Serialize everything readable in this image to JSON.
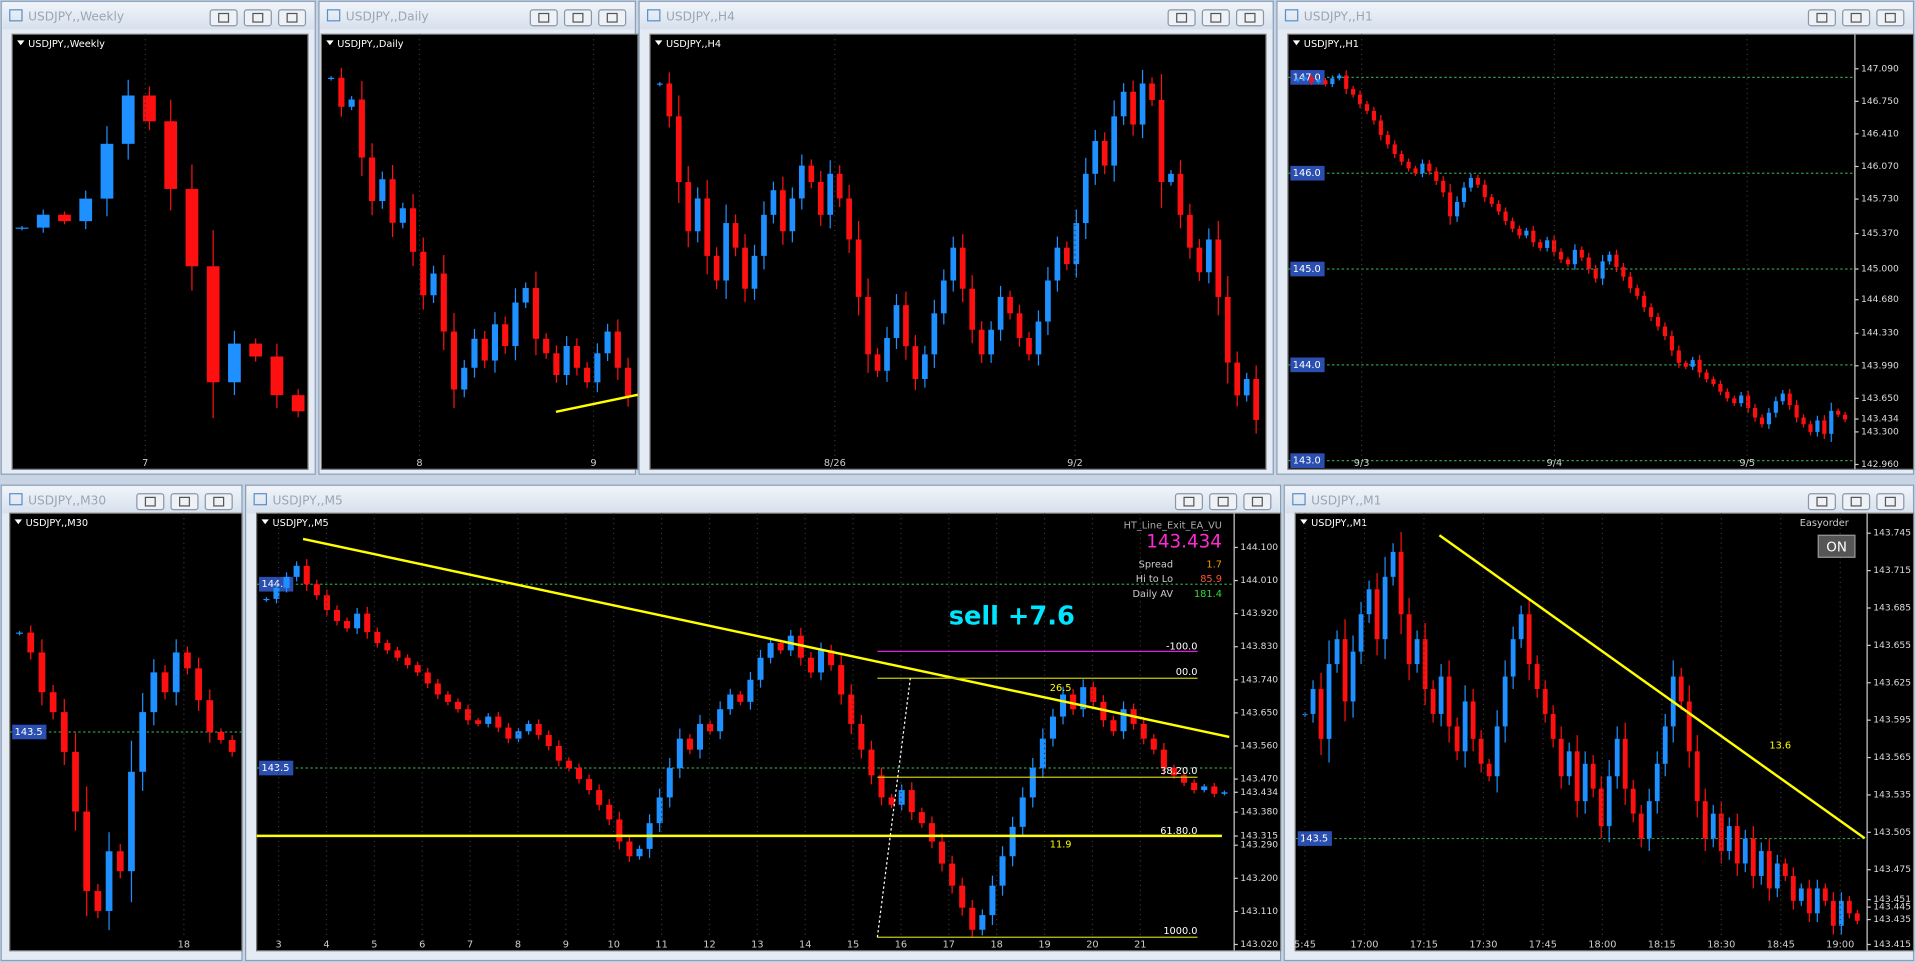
{
  "windows": [
    {
      "title": "USDJPY,,Weekly",
      "ylim": [
        138.5,
        152
      ],
      "xticks": [
        "7"
      ],
      "closes": [
        146.0,
        146.4,
        146.2,
        146.9,
        148.6,
        150.1,
        149.3,
        147.2,
        144.8,
        141.2,
        142.4,
        142.0,
        140.8,
        140.3
      ]
    },
    {
      "title": "USDJPY,,Daily",
      "ylim": [
        142.5,
        148.5
      ],
      "xticks": [
        "8",
        "9"
      ],
      "closes": [
        147.9,
        147.5,
        147.6,
        146.8,
        146.2,
        146.5,
        145.9,
        146.1,
        145.5,
        144.9,
        145.2,
        144.4,
        143.6,
        143.9,
        144.3,
        144.0,
        144.5,
        144.2,
        144.8,
        145.0,
        144.3,
        144.1,
        143.8,
        144.2,
        143.9,
        143.7,
        144.1,
        144.4,
        143.9,
        143.5
      ]
    },
    {
      "title": "USDJPY,,H4",
      "ylim": [
        142.3,
        147.6
      ],
      "xticks": [
        "8/26",
        "9/2"
      ],
      "closes": [
        147.0,
        146.6,
        145.8,
        145.2,
        145.6,
        144.9,
        144.6,
        145.3,
        145.0,
        144.5,
        144.9,
        145.4,
        145.7,
        145.2,
        145.6,
        146.0,
        145.8,
        145.4,
        145.9,
        145.6,
        145.1,
        144.4,
        143.7,
        143.5,
        143.9,
        144.3,
        143.8,
        143.4,
        143.7,
        144.2,
        144.6,
        145.0,
        144.5,
        144.0,
        143.7,
        144.0,
        144.4,
        144.2,
        143.9,
        143.7,
        144.1,
        144.6,
        145.0,
        144.8,
        145.3,
        145.9,
        146.3,
        146.0,
        146.6,
        146.9,
        146.5,
        147.0,
        146.8,
        145.8,
        145.9,
        145.4,
        145.0,
        144.7,
        145.1,
        144.4,
        143.6,
        143.2,
        143.4,
        142.9
      ]
    },
    {
      "title": "USDJPY,,H1",
      "ylim": [
        142.91,
        147.45
      ],
      "xticks": [
        "9/3",
        "9/4",
        "9/5"
      ],
      "yticks": [
        {
          "value": 147.09,
          "label": "147.090"
        },
        {
          "value": 146.75,
          "label": "146.750"
        },
        {
          "value": 146.41,
          "label": "146.410"
        },
        {
          "value": 146.07,
          "label": "146.070"
        },
        {
          "value": 145.73,
          "label": "145.730"
        },
        {
          "value": 145.37,
          "label": "145.370"
        },
        {
          "value": 145.0,
          "label": "145.000"
        },
        {
          "value": 144.68,
          "label": "144.680"
        },
        {
          "value": 144.33,
          "label": "144.330"
        },
        {
          "value": 143.99,
          "label": "143.990"
        },
        {
          "value": 143.65,
          "label": "143.650"
        },
        143.434,
        {
          "value": 143.3,
          "label": "143.300"
        },
        {
          "value": 142.96,
          "label": "142.960"
        }
      ],
      "levels": [
        {
          "value": 147,
          "label": "147.0"
        },
        {
          "value": 146,
          "label": "146.0"
        },
        {
          "value": 145,
          "label": "145.0"
        },
        {
          "value": 144,
          "label": "144.0"
        },
        {
          "value": 143,
          "label": "143.0"
        }
      ],
      "closes": [
        146.98,
        147.0,
        146.95,
        146.97,
        146.93,
        146.99,
        147.02,
        146.88,
        146.82,
        146.72,
        146.65,
        146.55,
        146.4,
        146.3,
        146.2,
        146.12,
        146.05,
        146.0,
        146.1,
        146.02,
        145.92,
        145.8,
        145.55,
        145.7,
        145.85,
        145.95,
        145.88,
        145.75,
        145.68,
        145.6,
        145.5,
        145.42,
        145.35,
        145.4,
        145.28,
        145.22,
        145.3,
        145.18,
        145.1,
        145.05,
        145.2,
        145.12,
        145.0,
        144.9,
        145.08,
        145.15,
        145.02,
        144.92,
        144.8,
        144.72,
        144.6,
        144.5,
        144.4,
        144.3,
        144.15,
        144.02,
        143.98,
        144.05,
        143.92,
        143.85,
        143.8,
        143.72,
        143.65,
        143.6,
        143.68,
        143.55,
        143.45,
        143.38,
        143.5,
        143.62,
        143.7,
        143.58,
        143.45,
        143.38,
        143.3,
        143.42,
        143.28,
        143.52,
        143.48,
        143.43
      ]
    },
    {
      "title": "USDJPY,,M30",
      "ylim": [
        142.95,
        144.05
      ],
      "xticks": [
        "18"
      ],
      "levels": [
        {
          "value": 143.5,
          "label": "143.5"
        }
      ],
      "closes": [
        143.75,
        143.7,
        143.6,
        143.55,
        143.45,
        143.3,
        143.1,
        143.05,
        143.2,
        143.15,
        143.4,
        143.55,
        143.65,
        143.6,
        143.7,
        143.66,
        143.58,
        143.5,
        143.48,
        143.45
      ]
    },
    {
      "title": "USDJPY,,M5",
      "ylim": [
        143.003,
        144.193
      ],
      "xticks": [
        "3",
        "4",
        "5",
        "6",
        "7",
        "8",
        "9",
        "10",
        "11",
        "12",
        "13",
        "14",
        "15",
        "16",
        "17",
        "18",
        "19",
        "20",
        "21"
      ],
      "yticks": [
        {
          "value": 144.1,
          "label": "144.100"
        },
        {
          "value": 144.01,
          "label": "144.010"
        },
        {
          "value": 143.92,
          "label": "143.920"
        },
        {
          "value": 143.83,
          "label": "143.830"
        },
        {
          "value": 143.74,
          "label": "143.740"
        },
        {
          "value": 143.65,
          "label": "143.650"
        },
        {
          "value": 143.56,
          "label": "143.560"
        },
        {
          "value": 143.47,
          "label": "143.470"
        },
        143.434,
        {
          "value": 143.38,
          "label": "143.380"
        },
        143.315,
        {
          "value": 143.29,
          "label": "143.290"
        },
        {
          "value": 143.2,
          "label": "143.200"
        },
        {
          "value": 143.11,
          "label": "143.110"
        },
        {
          "value": 143.02,
          "label": "143.020"
        }
      ],
      "levels": [
        {
          "value": 144,
          "label": "144.0"
        },
        {
          "value": 143.5,
          "label": "143.5"
        }
      ],
      "closes": [
        143.96,
        143.99,
        144.02,
        144.05,
        144.0,
        143.97,
        143.93,
        143.9,
        143.88,
        143.92,
        143.87,
        143.84,
        143.82,
        143.8,
        143.78,
        143.76,
        143.73,
        143.7,
        143.68,
        143.66,
        143.63,
        143.62,
        143.64,
        143.61,
        143.58,
        143.6,
        143.62,
        143.59,
        143.56,
        143.52,
        143.5,
        143.47,
        143.44,
        143.4,
        143.36,
        143.3,
        143.26,
        143.28,
        143.35,
        143.42,
        143.5,
        143.58,
        143.55,
        143.62,
        143.6,
        143.66,
        143.7,
        143.68,
        143.74,
        143.8,
        143.84,
        143.82,
        143.86,
        143.8,
        143.76,
        143.82,
        143.78,
        143.7,
        143.62,
        143.55,
        143.48,
        143.42,
        143.4,
        143.44,
        143.38,
        143.35,
        143.3,
        143.24,
        143.18,
        143.12,
        143.06,
        143.1,
        143.18,
        143.26,
        143.34,
        143.42,
        143.5,
        143.58,
        143.64,
        143.7,
        143.66,
        143.72,
        143.68,
        143.63,
        143.6,
        143.66,
        143.62,
        143.58,
        143.55,
        143.5,
        143.48,
        143.46,
        143.44,
        143.45,
        143.43,
        143.434
      ]
    },
    {
      "title": "USDJPY,,M1",
      "ylim": [
        143.41,
        143.761
      ],
      "xticks": [
        "5:45",
        "17:00",
        "17:15",
        "17:30",
        "17:45",
        "18:00",
        "18:15",
        "18:30",
        "18:45",
        "19:00"
      ],
      "yticks": [
        143.745,
        143.715,
        143.685,
        143.655,
        143.625,
        143.595,
        143.565,
        143.535,
        143.505,
        143.475,
        143.451,
        143.445,
        143.435,
        143.415
      ],
      "levels": [
        {
          "value": 143.5,
          "label": "143.5"
        }
      ],
      "closes": [
        143.6,
        143.62,
        143.58,
        143.64,
        143.66,
        143.61,
        143.65,
        143.68,
        143.7,
        143.66,
        143.71,
        143.73,
        143.68,
        143.64,
        143.66,
        143.62,
        143.6,
        143.63,
        143.59,
        143.57,
        143.61,
        143.58,
        143.56,
        143.55,
        143.59,
        143.63,
        143.66,
        143.68,
        143.64,
        143.62,
        143.6,
        143.58,
        143.55,
        143.57,
        143.53,
        143.56,
        143.54,
        143.51,
        143.55,
        143.58,
        143.54,
        143.52,
        143.5,
        143.53,
        143.56,
        143.59,
        143.63,
        143.61,
        143.57,
        143.53,
        143.5,
        143.52,
        143.49,
        143.51,
        143.48,
        143.5,
        143.47,
        143.49,
        143.46,
        143.48,
        143.47,
        143.45,
        143.46,
        143.44,
        143.46,
        143.45,
        143.43,
        143.45,
        143.44,
        143.434
      ]
    }
  ],
  "m5_panel": {
    "ea": "HT_Line_Exit_EA_VU",
    "price": "143.434",
    "rows": [
      [
        "Spread",
        "1.7"
      ],
      [
        "Hi to Lo",
        "85.9"
      ],
      [
        "Daily AV",
        "181.4"
      ]
    ],
    "signal": "sell +7.6",
    "fib": [
      "-100.0",
      "00.0",
      "26.5",
      "38.20.0",
      "61.80.0",
      "11.9",
      "1000.0"
    ]
  },
  "m1_panel": {
    "ea": "Easyorder",
    "button": "ON",
    "fib": "13.6"
  }
}
